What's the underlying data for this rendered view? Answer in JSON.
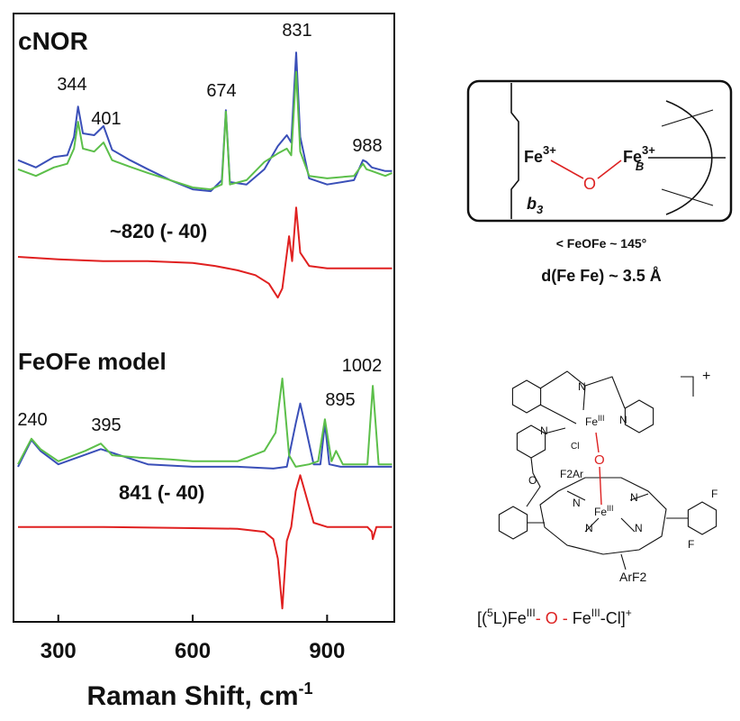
{
  "chart_data": {
    "type": "line",
    "xlim": [
      200,
      1050
    ],
    "xticks": [
      300,
      600,
      900
    ],
    "ylim": [
      0,
      100
    ],
    "x_label": {
      "text": "Raman Shift, cm",
      "sup": "-1"
    },
    "annotations": [
      "cNOR",
      "344",
      "401",
      "674",
      "831",
      "988",
      "~820 (- 40)",
      "FeOFe model",
      "1002",
      "240",
      "395",
      "895",
      "841 (- 40)"
    ],
    "series": [
      {
        "color": "#3a4fb8",
        "x": [
          210,
          250,
          290,
          320,
          335,
          344,
          355,
          380,
          401,
          420,
          460,
          500,
          550,
          600,
          640,
          665,
          674,
          683,
          720,
          760,
          790,
          810,
          820,
          831,
          840,
          860,
          900,
          960,
          980,
          988,
          1000,
          1030,
          1045
        ],
        "values": [
          75.9,
          74.7,
          76.4,
          76.7,
          79.7,
          84.7,
          80.3,
          80.0,
          81.5,
          77.6,
          75.9,
          74.4,
          72.6,
          71.1,
          70.8,
          72.6,
          84.1,
          72.3,
          71.9,
          74.4,
          78.2,
          80.0,
          78.8,
          93.6,
          79.7,
          72.9,
          71.9,
          72.6,
          75.9,
          75.6,
          74.7,
          74.1,
          74.1
        ]
      },
      {
        "color": "#5cbf4a",
        "x": [
          210,
          250,
          290,
          320,
          335,
          344,
          355,
          380,
          401,
          420,
          460,
          500,
          550,
          600,
          640,
          665,
          674,
          683,
          720,
          760,
          790,
          810,
          820,
          831,
          840,
          860,
          900,
          960,
          980,
          988,
          1000,
          1030,
          1045
        ],
        "values": [
          74.4,
          73.3,
          74.7,
          75.3,
          77.8,
          82.2,
          77.8,
          77.3,
          78.8,
          75.9,
          74.8,
          73.8,
          72.6,
          71.4,
          71.1,
          71.9,
          83.9,
          71.9,
          72.6,
          75.6,
          77.0,
          77.8,
          76.7,
          90.4,
          77.3,
          73.3,
          72.9,
          73.3,
          75.3,
          74.4,
          74.1,
          73.3,
          73.8
        ]
      },
      {
        "color": "#e02020",
        "x": [
          210,
          300,
          400,
          500,
          600,
          650,
          700,
          740,
          770,
          790,
          800,
          815,
          822,
          831,
          840,
          860,
          900,
          1000,
          1045
        ],
        "values": [
          60.0,
          59.6,
          59.3,
          59.3,
          59.0,
          58.5,
          57.8,
          57.0,
          55.6,
          53.3,
          54.8,
          63.4,
          59.3,
          68.1,
          60.7,
          58.5,
          58.1,
          58.1,
          58.1
        ]
      },
      {
        "color": "#3a4fb8",
        "x": [
          210,
          240,
          260,
          300,
          395,
          500,
          600,
          700,
          780,
          810,
          830,
          840,
          850,
          870,
          885,
          895,
          905,
          930,
          960,
          1000,
          1045
        ],
        "values": [
          25.5,
          29.9,
          28.1,
          25.9,
          28.4,
          25.9,
          25.5,
          25.5,
          25.2,
          25.5,
          32.6,
          35.9,
          32.6,
          25.9,
          25.9,
          32.6,
          25.9,
          25.5,
          25.5,
          25.5,
          25.5
        ]
      },
      {
        "color": "#5cbf4a",
        "x": [
          210,
          240,
          260,
          300,
          360,
          395,
          420,
          480,
          550,
          600,
          700,
          760,
          785,
          800,
          815,
          830,
          860,
          880,
          895,
          910,
          920,
          935,
          960,
          990,
          1002,
          1015,
          1045
        ],
        "values": [
          25.9,
          30.1,
          28.4,
          26.4,
          28.1,
          29.3,
          27.4,
          27.0,
          26.7,
          26.4,
          26.4,
          28.1,
          31.1,
          40.0,
          27.4,
          25.5,
          25.9,
          26.4,
          33.3,
          26.4,
          28.1,
          25.9,
          25.9,
          25.9,
          38.8,
          25.9,
          25.9
        ]
      },
      {
        "color": "#e02020",
        "x": [
          210,
          400,
          600,
          700,
          760,
          780,
          790,
          800,
          810,
          820,
          830,
          840,
          850,
          870,
          900,
          990,
          1000,
          1002,
          1010,
          1045
        ],
        "values": [
          15.6,
          15.6,
          15.4,
          15.3,
          14.8,
          13.6,
          10.4,
          2.2,
          13.3,
          15.6,
          21.5,
          24.1,
          21.5,
          16.3,
          15.6,
          15.6,
          14.8,
          13.6,
          15.6,
          15.6
        ]
      }
    ]
  },
  "diagram": {
    "site": {
      "fe_a": "Fe",
      "fe_a_charge": "3+",
      "o": "O",
      "fe_b": "Fe",
      "fe_b_charge": "3+",
      "fe_b_sub": "B",
      "b3_main": "b",
      "b3_sub": "3"
    },
    "angle": "< FeOFe ~ 145°",
    "distance": "d(Fe Fe) ~ 3.5 Å",
    "structure": {
      "n1": "N",
      "n2": "N",
      "n3": "N",
      "fe_top": "Fe",
      "fe_top_ox": "III",
      "cl": "Cl",
      "o": "O",
      "f2ar": "F2Ar",
      "n4": "N",
      "n5": "N",
      "n6": "N",
      "n7": "N",
      "fe_bot": "Fe",
      "fe_bot_ox": "III",
      "f1": "F",
      "f2": "F",
      "arf2": "ArF2",
      "o_link": "O",
      "charge": "+"
    },
    "formula": {
      "open": "[(",
      "sup5": "5",
      "l_fe": "L)Fe",
      "ox1": "III",
      "o": "- O -",
      "fe": " Fe",
      "ox2": "III",
      "cl": "-Cl]",
      "charge": "+"
    }
  }
}
